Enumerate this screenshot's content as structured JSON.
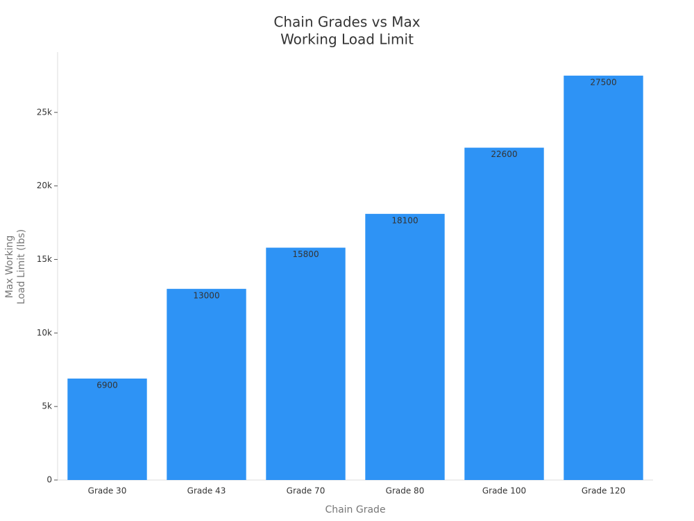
{
  "chart_data": {
    "type": "bar",
    "title": [
      "Chain Grades vs Max",
      "Working Load Limit"
    ],
    "x_label": "Chain Grade",
    "y_label": [
      "Max Working",
      "Load Limit (lbs)"
    ],
    "categories": [
      "Grade 30",
      "Grade 43",
      "Grade 70",
      "Grade 80",
      "Grade 100",
      "Grade 120"
    ],
    "values": [
      6900,
      13000,
      15800,
      18100,
      22600,
      27500
    ],
    "color": "#2e93f5",
    "ylim": [
      0,
      29100
    ],
    "yticks": [
      0,
      {
        "value": 5000,
        "label": "5k"
      },
      {
        "value": 10000,
        "label": "10k"
      },
      {
        "value": 15000,
        "label": "15k"
      },
      {
        "value": 20000,
        "label": "20k"
      },
      {
        "value": 25000,
        "label": "25k"
      }
    ],
    "grid": false
  }
}
